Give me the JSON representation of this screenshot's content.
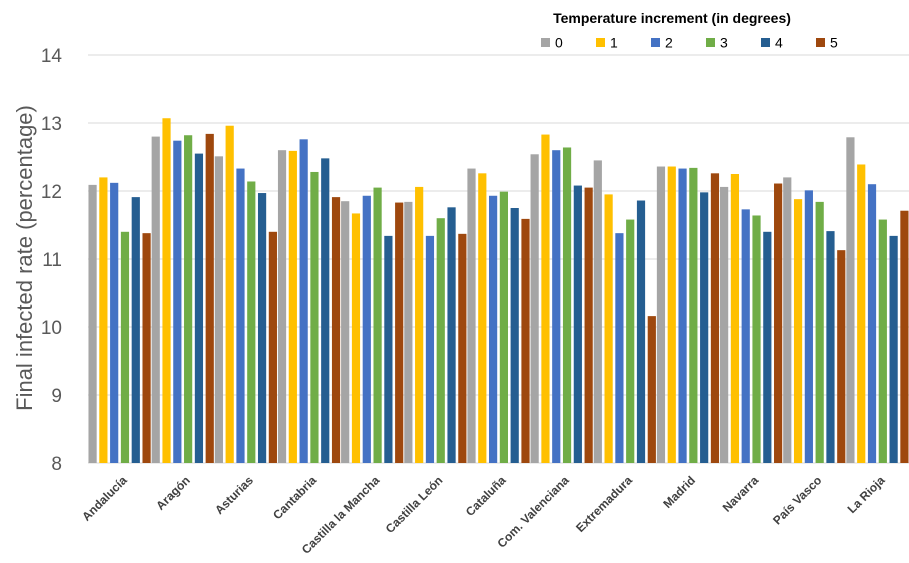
{
  "chart_data": {
    "type": "bar",
    "ylabel": "Final infected rate (percentage)",
    "xlabel": "",
    "ylim": [
      8,
      14
    ],
    "yticks": [
      8,
      9,
      10,
      11,
      12,
      13,
      14
    ],
    "grid": true,
    "legend": {
      "title": "Temperature increment (in degrees)",
      "placement": "top-right"
    },
    "categories": [
      "Andalucía",
      "Aragón",
      "Asturias",
      "Cantabria",
      "Castilla la Mancha",
      "Castilla León",
      "Cataluña",
      "Com. Valenciana",
      "Extremadura",
      "Madrid",
      "Navarra",
      "País Vasco",
      "La Rioja"
    ],
    "series": [
      {
        "name": "0",
        "color": "#A5A5A5",
        "values": [
          12.09,
          12.8,
          12.51,
          12.6,
          11.85,
          11.84,
          12.33,
          12.54,
          12.45,
          12.36,
          12.06,
          12.2,
          12.79
        ]
      },
      {
        "name": "1",
        "color": "#FFC000",
        "values": [
          12.2,
          13.07,
          12.96,
          12.59,
          11.67,
          12.06,
          12.26,
          12.83,
          11.95,
          12.36,
          12.25,
          11.88,
          12.39
        ]
      },
      {
        "name": "2",
        "color": "#4472C4",
        "values": [
          12.12,
          12.74,
          12.33,
          12.76,
          11.93,
          11.34,
          11.93,
          12.6,
          11.38,
          12.33,
          11.73,
          12.01,
          12.1
        ]
      },
      {
        "name": "3",
        "color": "#70AD47",
        "values": [
          11.4,
          12.82,
          12.14,
          12.28,
          12.05,
          11.6,
          11.99,
          12.64,
          11.58,
          12.34,
          11.64,
          11.84,
          11.58
        ]
      },
      {
        "name": "4",
        "color": "#255E91",
        "values": [
          11.91,
          12.55,
          11.97,
          12.48,
          11.34,
          11.76,
          11.75,
          12.08,
          11.86,
          11.98,
          11.4,
          11.41,
          11.34
        ]
      },
      {
        "name": "5",
        "color": "#9E480E",
        "values": [
          11.38,
          12.84,
          11.4,
          11.91,
          11.83,
          11.37,
          11.59,
          12.05,
          10.16,
          12.26,
          12.11,
          11.13,
          11.71
        ]
      }
    ]
  }
}
